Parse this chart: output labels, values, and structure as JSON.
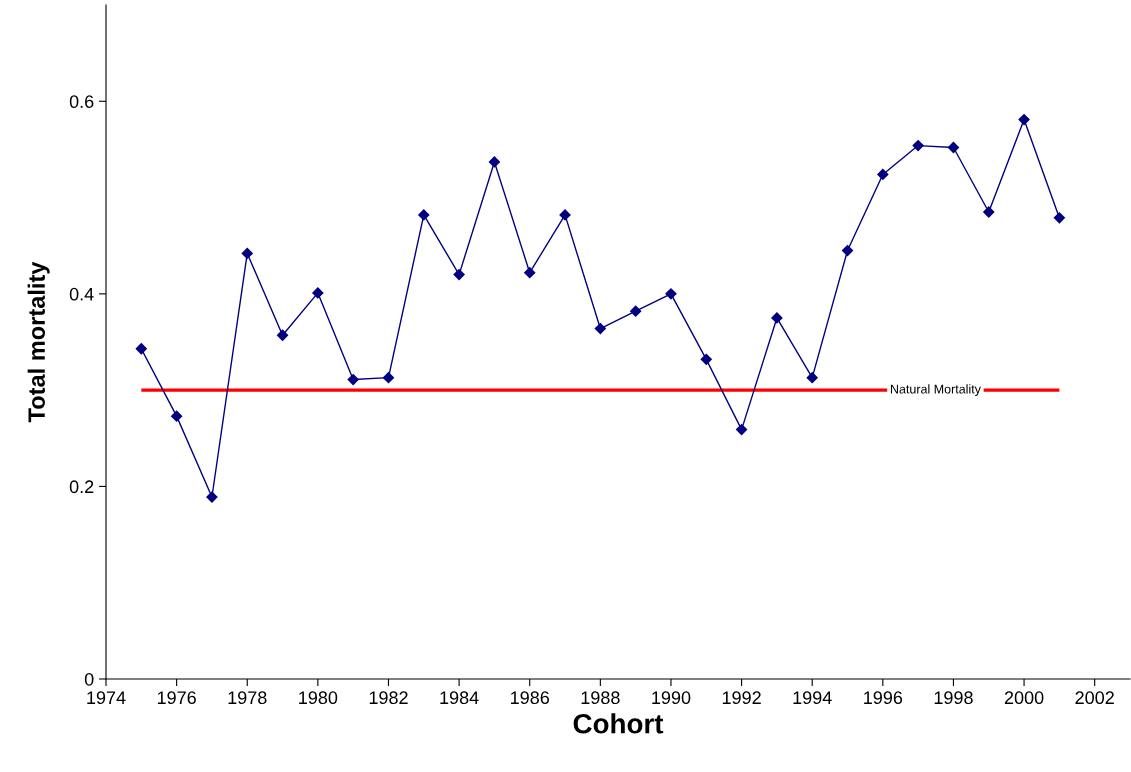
{
  "chart_data": {
    "type": "line",
    "xlabel": "Cohort",
    "ylabel": "Total mortality",
    "x": [
      1975,
      1976,
      1977,
      1978,
      1979,
      1980,
      1981,
      1982,
      1983,
      1984,
      1985,
      1986,
      1987,
      1988,
      1989,
      1990,
      1991,
      1992,
      1993,
      1994,
      1995,
      1996,
      1997,
      1998,
      1999,
      2000,
      2001
    ],
    "series": [
      {
        "color": "#000080",
        "values": [
          0.343,
          0.273,
          0.189,
          0.442,
          0.357,
          0.401,
          0.311,
          0.313,
          0.482,
          0.42,
          0.537,
          0.422,
          0.482,
          0.364,
          0.382,
          0.4,
          0.332,
          0.259,
          0.375,
          0.313,
          0.445,
          0.524,
          0.554,
          0.552,
          0.485,
          0.581,
          0.479
        ]
      }
    ],
    "marker": "diamond",
    "line_style": "solid",
    "xlim": [
      1974,
      2003
    ],
    "xticks": [
      1974,
      1976,
      1978,
      1980,
      1982,
      1984,
      1986,
      1988,
      1990,
      1992,
      1994,
      1996,
      1998,
      2000,
      2002
    ],
    "ylim": [
      0,
      0.7
    ],
    "yticks": [
      0,
      0.2,
      0.4,
      0.6
    ],
    "ref_lines": [
      {
        "axis": "y",
        "value": 0.3,
        "label": "Natural Mortality",
        "color": "#ff0000"
      }
    ],
    "grid": false,
    "legend": false
  }
}
